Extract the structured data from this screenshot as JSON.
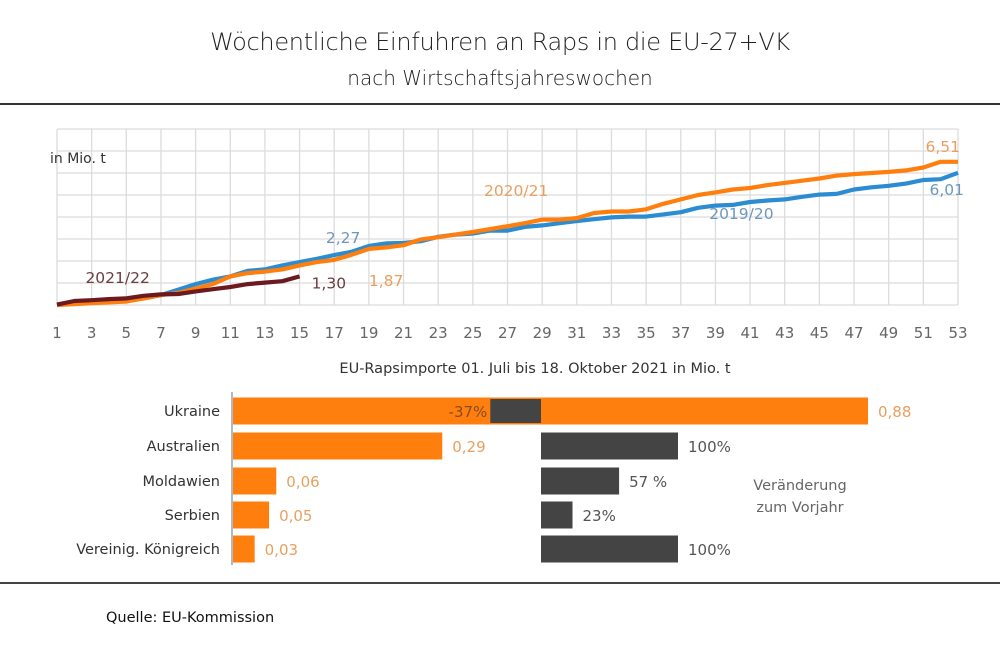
{
  "header": {
    "title": "Wöchentliche Einfuhren an Raps in die EU-27+VK",
    "subtitle": "nach Wirtschaftsjahreswochen"
  },
  "footer": {
    "source": "Quelle:  EU-Kommission"
  },
  "colors": {
    "orange": "#ff7f0e",
    "blue": "#2b8cd2",
    "darkred": "#6b1a1f",
    "grey_bar": "#444444",
    "grid": "#dcdcdc",
    "label_orange": "#e8a060",
    "label_blue": "#6e98ba",
    "label_darkred": "#6b3d3f",
    "text": "#555555"
  },
  "chart_data": [
    {
      "type": "line",
      "title": "Wöchentliche Einfuhren an Raps in die EU-27+VK",
      "subtitle": "nach Wirtschaftsjahreswochen",
      "ylabel": "in Mio. t",
      "xlabel": "",
      "xlim": [
        1,
        53
      ],
      "ylim": [
        0,
        8
      ],
      "grid": true,
      "x_ticks": [
        1,
        3,
        5,
        7,
        9,
        11,
        13,
        15,
        17,
        19,
        21,
        23,
        25,
        27,
        29,
        31,
        33,
        35,
        37,
        39,
        41,
        43,
        45,
        47,
        49,
        51,
        53
      ],
      "series": [
        {
          "name": "2019/20",
          "color_key": "blue",
          "end_label": "6,01",
          "mid_label": "2,27",
          "mid_label_week": 16,
          "x": [
            1,
            2,
            3,
            4,
            5,
            6,
            7,
            8,
            9,
            10,
            11,
            12,
            13,
            14,
            15,
            16,
            17,
            18,
            19,
            20,
            21,
            22,
            23,
            24,
            25,
            26,
            27,
            28,
            29,
            30,
            31,
            32,
            33,
            34,
            35,
            36,
            37,
            38,
            39,
            40,
            41,
            42,
            43,
            44,
            45,
            46,
            47,
            48,
            49,
            50,
            51,
            52,
            53
          ],
          "values": [
            0.02,
            0.08,
            0.12,
            0.16,
            0.2,
            0.3,
            0.45,
            0.7,
            0.95,
            1.15,
            1.3,
            1.55,
            1.62,
            1.8,
            1.95,
            2.1,
            2.27,
            2.42,
            2.68,
            2.8,
            2.82,
            2.9,
            3.1,
            3.2,
            3.25,
            3.38,
            3.38,
            3.55,
            3.62,
            3.72,
            3.82,
            3.9,
            3.98,
            4.02,
            4.02,
            4.12,
            4.22,
            4.42,
            4.52,
            4.55,
            4.68,
            4.75,
            4.8,
            4.92,
            5.02,
            5.05,
            5.25,
            5.35,
            5.42,
            5.52,
            5.68,
            5.72,
            6.01
          ]
        },
        {
          "name": "2020/21",
          "color_key": "orange",
          "end_label": "6,51",
          "mid_label": "1,87",
          "mid_label_week": 19,
          "series_label_week": 28,
          "x": [
            1,
            2,
            3,
            4,
            5,
            6,
            7,
            8,
            9,
            10,
            11,
            12,
            13,
            14,
            15,
            16,
            17,
            18,
            19,
            20,
            21,
            22,
            23,
            24,
            25,
            26,
            27,
            28,
            29,
            30,
            31,
            32,
            33,
            34,
            35,
            36,
            37,
            38,
            39,
            40,
            41,
            42,
            43,
            44,
            45,
            46,
            47,
            48,
            49,
            50,
            51,
            52,
            53
          ],
          "values": [
            0.0,
            0.04,
            0.08,
            0.12,
            0.16,
            0.3,
            0.45,
            0.55,
            0.75,
            0.95,
            1.3,
            1.45,
            1.52,
            1.62,
            1.8,
            1.95,
            2.05,
            2.28,
            2.55,
            2.62,
            2.72,
            2.98,
            3.08,
            3.2,
            3.32,
            3.45,
            3.58,
            3.72,
            3.88,
            3.88,
            3.95,
            4.18,
            4.25,
            4.25,
            4.35,
            4.6,
            4.8,
            5.0,
            5.12,
            5.25,
            5.32,
            5.45,
            5.55,
            5.65,
            5.75,
            5.88,
            5.95,
            6.0,
            6.05,
            6.12,
            6.25,
            6.51,
            6.51
          ]
        },
        {
          "name": "2021/22",
          "color_key": "darkred",
          "end_label": "1,30",
          "x": [
            1,
            2,
            3,
            4,
            5,
            6,
            7,
            8,
            9,
            10,
            11,
            12,
            13,
            14,
            15
          ],
          "values": [
            0.02,
            0.18,
            0.22,
            0.27,
            0.3,
            0.42,
            0.48,
            0.5,
            0.62,
            0.72,
            0.82,
            0.95,
            1.02,
            1.08,
            1.3
          ]
        }
      ],
      "series_labels": [
        {
          "text": "2021/22",
          "color_key": "label_darkred",
          "week": 4.5,
          "value": 1.0
        },
        {
          "text": "2020/21",
          "color_key": "label_orange",
          "week": 27.5,
          "value": 4.95
        },
        {
          "text": "2019/20",
          "color_key": "label_blue",
          "week": 40.5,
          "value": 3.9
        }
      ]
    },
    {
      "type": "bar",
      "orientation": "horizontal",
      "title": "EU-Rapsimporte 01. Juli bis 18. Oktober 2021 in Mio. t",
      "categories": [
        "Ukraine",
        "Australien",
        "Moldawien",
        "Serbien",
        "Vereinig. Königreich"
      ],
      "values": [
        0.88,
        0.29,
        0.06,
        0.05,
        0.03
      ],
      "value_labels": [
        "0,88",
        "0,29",
        "0,06",
        "0,05",
        "0,03"
      ],
      "xlim": [
        0,
        0.9
      ],
      "change": {
        "title_line1": "Veränderung",
        "title_line2": "zum Vorjahr",
        "values_percent": [
          -37,
          100,
          57,
          23,
          100
        ],
        "labels": [
          "-37%",
          "100%",
          "57 %",
          "23%",
          "100%"
        ]
      }
    }
  ]
}
